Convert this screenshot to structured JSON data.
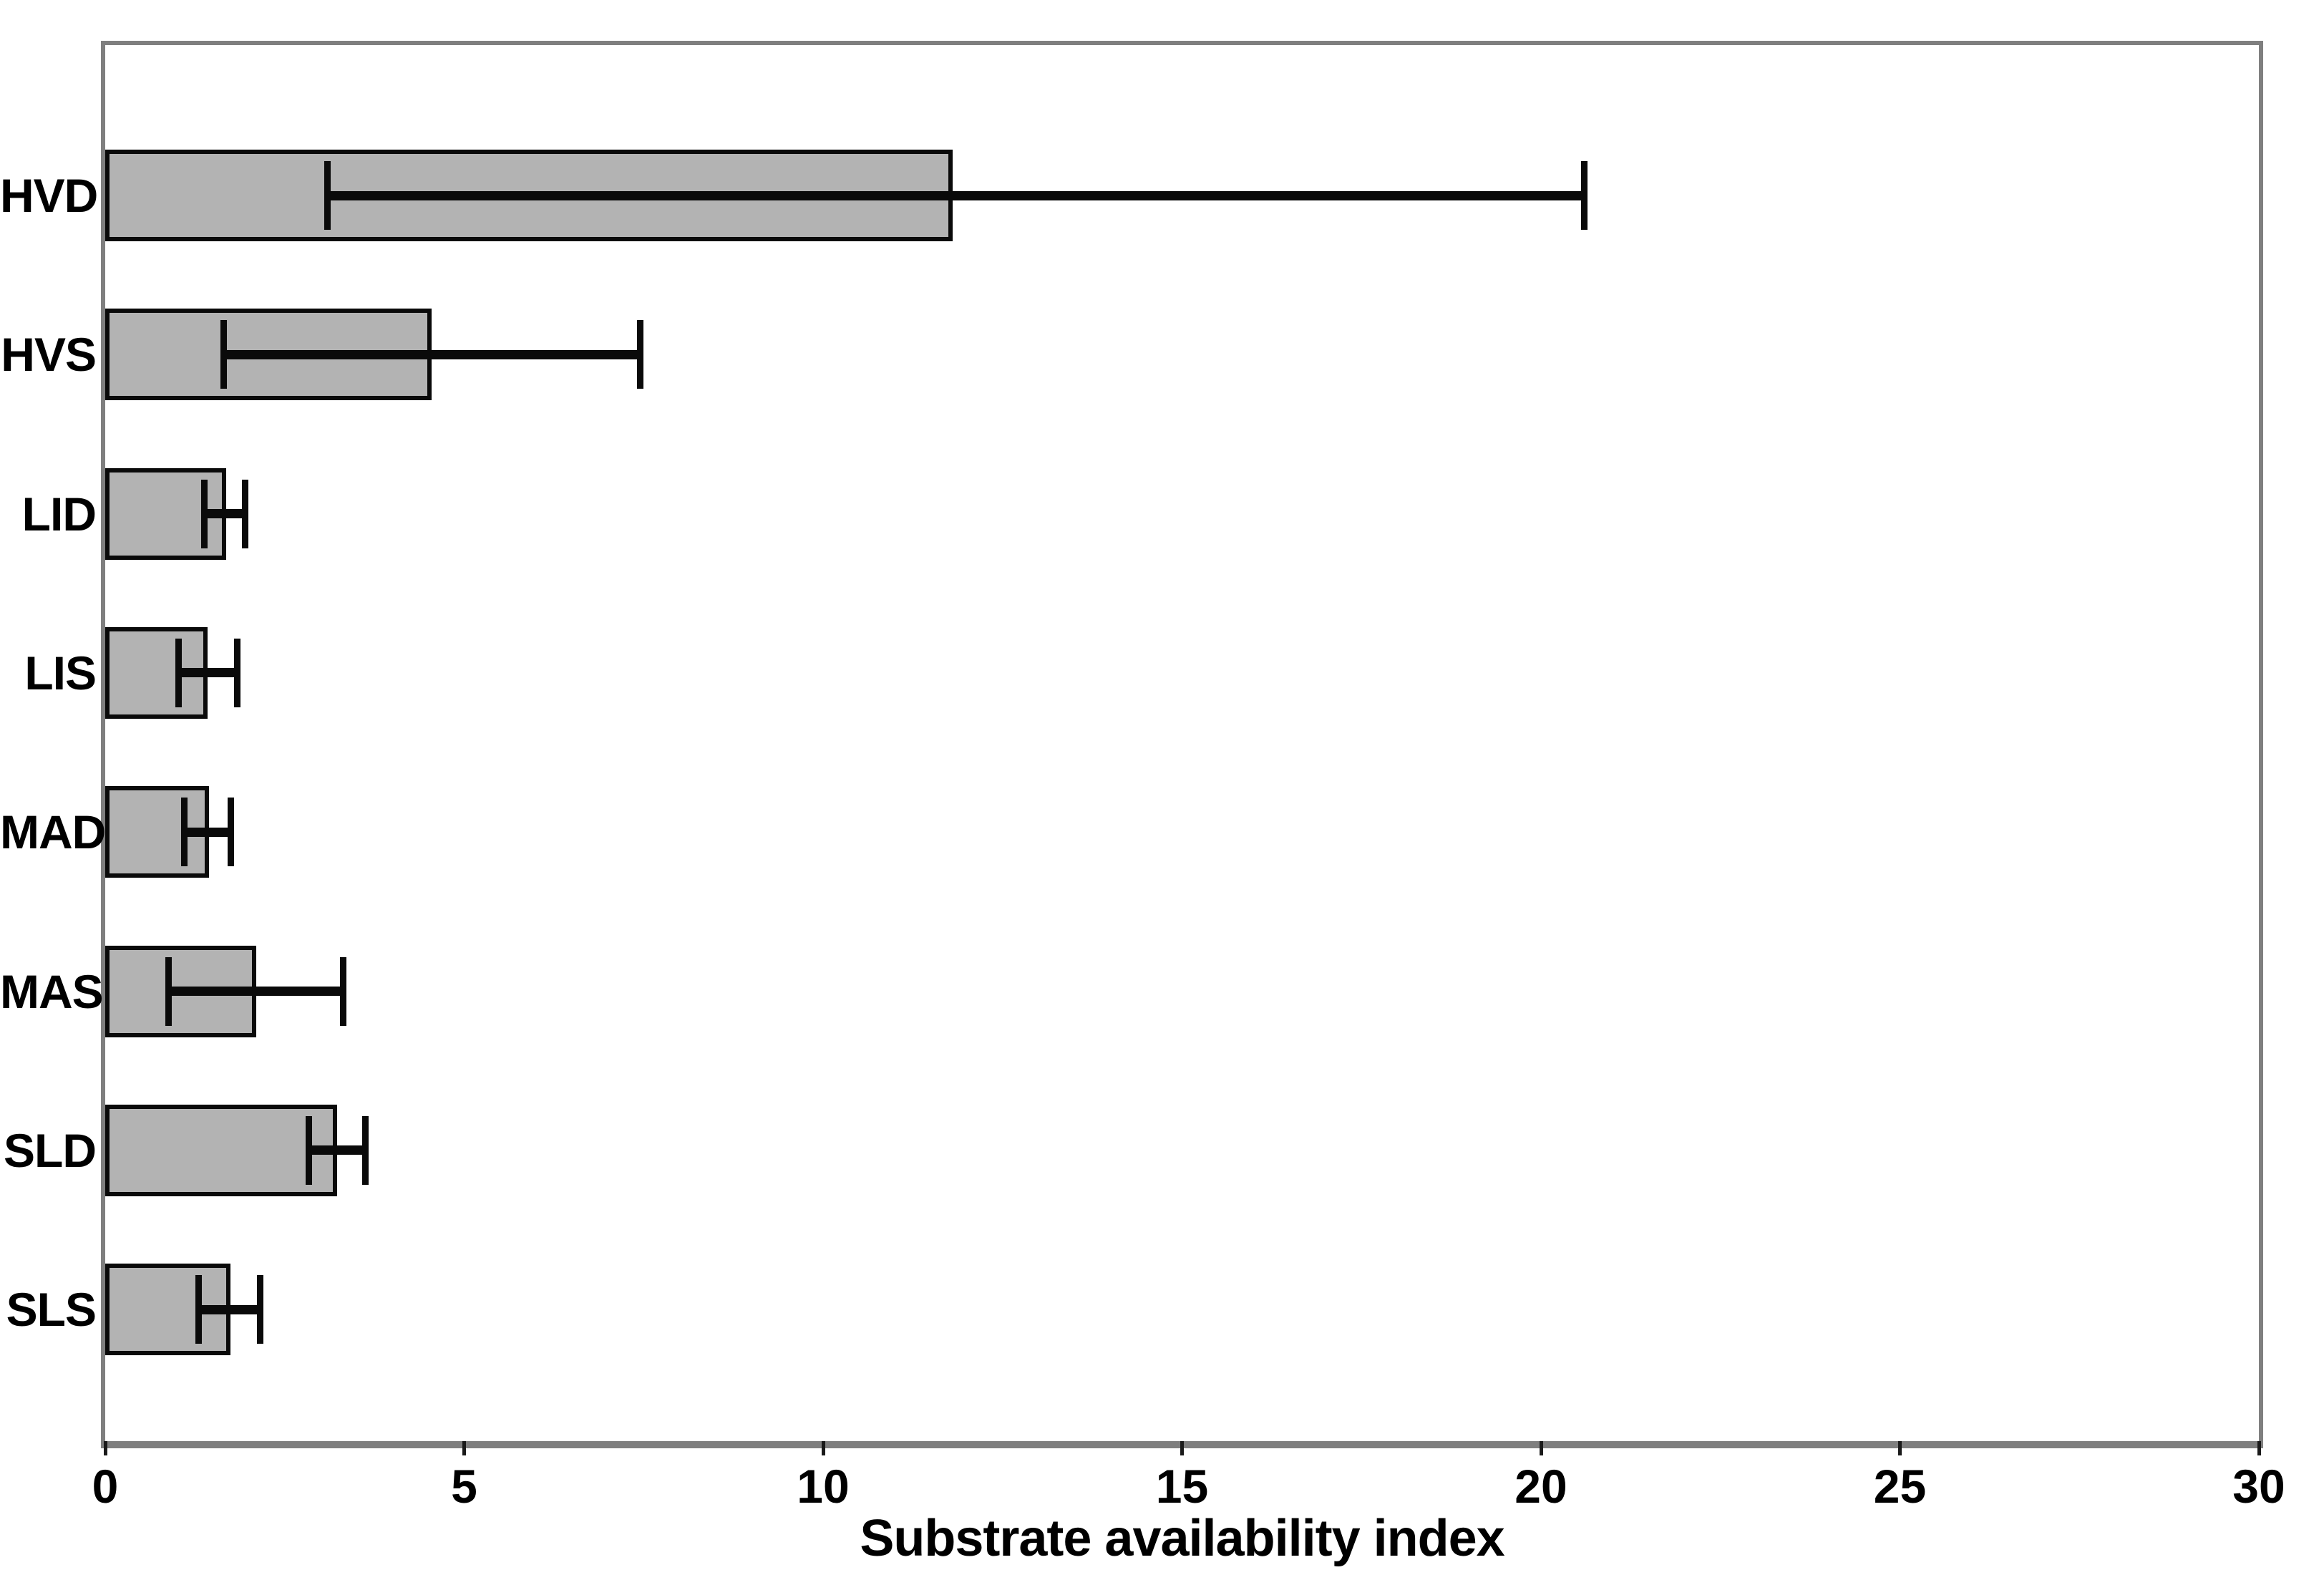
{
  "chart_data": {
    "type": "bar",
    "orientation": "horizontal",
    "title": "",
    "xlabel": "Substrate availability index",
    "ylabel": "",
    "categories": [
      "HVD",
      "HVS",
      "LID",
      "LIS",
      "MAD",
      "MAS",
      "SLD",
      "SLS"
    ],
    "values": [
      11.8,
      4.55,
      1.68,
      1.43,
      1.45,
      2.1,
      3.23,
      1.74
    ],
    "error_low": [
      3.1,
      1.65,
      1.38,
      1.02,
      1.1,
      0.88,
      2.84,
      1.3
    ],
    "error_high": [
      20.6,
      7.45,
      1.95,
      1.84,
      1.75,
      3.32,
      3.62,
      2.16
    ],
    "x_ticks": [
      0,
      5,
      10,
      15,
      20,
      25,
      30
    ],
    "xlim": [
      0,
      30
    ],
    "grid": false,
    "legend": null,
    "colors": {
      "bar_fill": "#b3b3b3",
      "bar_border": "#0a0a0a",
      "error_bar": "#0a0a0a",
      "frame": "#7f7f7f",
      "text": "#000000",
      "background": "#ffffff"
    }
  }
}
